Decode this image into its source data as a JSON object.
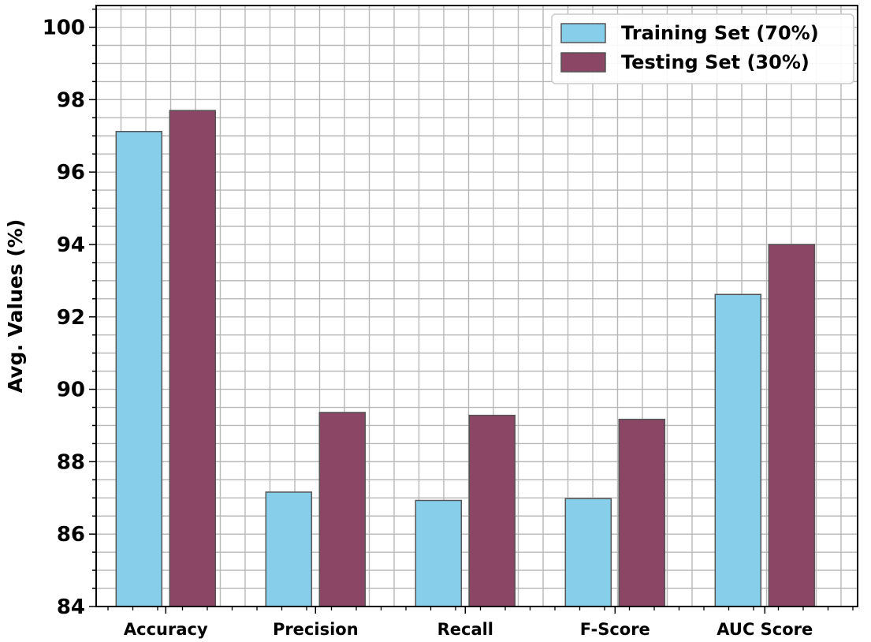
{
  "chart_data": {
    "type": "bar",
    "title": "",
    "xlabel": "",
    "ylabel": "Avg. Values (%)",
    "categories": [
      "Accuracy",
      "Precision",
      "Recall",
      "F-Score",
      "AUC Score"
    ],
    "series": [
      {
        "name": "Training Set (70%)",
        "color": "#87CEEB",
        "values": [
          97.12,
          87.16,
          86.93,
          86.98,
          92.62
        ]
      },
      {
        "name": "Testing Set (30%)",
        "color": "#8B4565",
        "values": [
          97.7,
          89.36,
          89.28,
          89.17,
          94.0
        ]
      }
    ],
    "ylim": [
      84,
      100.6
    ],
    "yticks": [
      "84",
      "86",
      "88",
      "90",
      "92",
      "94",
      "96",
      "98",
      "100"
    ],
    "grid": true,
    "legend_position": "top-right"
  }
}
